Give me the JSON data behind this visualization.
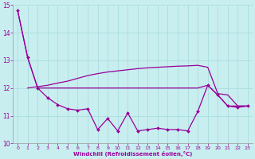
{
  "xlabel": "Windchill (Refroidissement éolien,°C)",
  "x_values": [
    0,
    1,
    2,
    3,
    4,
    5,
    6,
    7,
    8,
    9,
    10,
    11,
    12,
    13,
    14,
    15,
    16,
    17,
    18,
    19,
    20,
    21,
    22,
    23
  ],
  "line_markers": [
    14.8,
    13.1,
    12.0,
    11.65,
    11.4,
    11.25,
    11.2,
    11.25,
    10.5,
    10.9,
    10.45,
    11.1,
    10.45,
    10.5,
    10.55,
    10.5,
    10.5,
    10.45,
    11.15,
    12.1,
    11.75,
    11.35,
    11.3,
    11.35
  ],
  "line_flat": [
    14.8,
    13.1,
    12.0,
    12.0,
    12.0,
    12.0,
    12.0,
    12.0,
    12.0,
    12.0,
    12.0,
    12.0,
    12.0,
    12.0,
    12.0,
    12.0,
    12.0,
    12.0,
    12.0,
    12.1,
    11.75,
    11.35,
    11.35,
    11.35
  ],
  "line_rising_x": [
    1,
    2,
    3,
    4,
    5,
    6,
    7,
    8,
    9,
    10,
    11,
    12,
    13,
    14,
    15,
    16,
    17,
    18,
    19,
    20,
    21,
    22,
    23
  ],
  "line_rising": [
    12.0,
    12.05,
    12.1,
    12.18,
    12.25,
    12.35,
    12.45,
    12.52,
    12.58,
    12.62,
    12.66,
    12.7,
    12.73,
    12.75,
    12.77,
    12.79,
    12.8,
    12.82,
    12.75,
    11.8,
    11.75,
    11.35,
    11.35
  ],
  "bg_color": "#c8eef0",
  "line_color": "#990099",
  "grid_color": "#aadddd",
  "ylim": [
    10,
    15
  ],
  "xlim": [
    -0.5,
    23.5
  ],
  "yticks": [
    10,
    11,
    12,
    13,
    14,
    15
  ],
  "xticks": [
    0,
    1,
    2,
    3,
    4,
    5,
    6,
    7,
    8,
    9,
    10,
    11,
    12,
    13,
    14,
    15,
    16,
    17,
    18,
    19,
    20,
    21,
    22,
    23
  ]
}
